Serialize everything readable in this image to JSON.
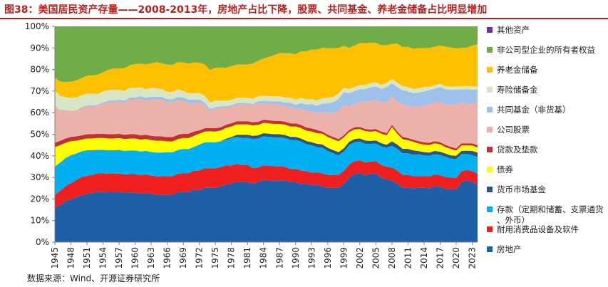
{
  "figure": {
    "title": "图38：美国居民资产存量——2008-2013年，房地产占比下降，股票、共同基金、养老金储备占比明显增加",
    "source": "数据来源：Wind、开源证券研究所"
  },
  "colors": {
    "title": "#b4211f",
    "series": [
      "#1f5fa8",
      "#f01f1f",
      "#00b0f0",
      "#2c5288",
      "#ffff00",
      "#c03232",
      "#ecb1a9",
      "#9fc0e8",
      "#d9e6c6",
      "#ffc000",
      "#70ad47",
      "#7030a0"
    ]
  },
  "chart_data": {
    "type": "area",
    "stacked": true,
    "percent": true,
    "x": [
      1945,
      1946,
      1947,
      1948,
      1949,
      1950,
      1951,
      1952,
      1953,
      1954,
      1955,
      1956,
      1957,
      1958,
      1959,
      1960,
      1961,
      1962,
      1963,
      1964,
      1965,
      1966,
      1967,
      1968,
      1969,
      1970,
      1971,
      1972,
      1973,
      1974,
      1975,
      1976,
      1977,
      1978,
      1979,
      1980,
      1981,
      1982,
      1983,
      1984,
      1985,
      1986,
      1987,
      1988,
      1989,
      1990,
      1991,
      1992,
      1993,
      1994,
      1995,
      1996,
      1997,
      1998,
      1999,
      2000,
      2001,
      2002,
      2003,
      2004,
      2005,
      2006,
      2007,
      2008,
      2009,
      2010,
      2011,
      2012,
      2013,
      2014,
      2015,
      2016,
      2017,
      2018,
      2019,
      2020,
      2021,
      2022,
      2023,
      2024
    ],
    "x_tick_labels": [
      "1945",
      "1948",
      "1951",
      "1954",
      "1957",
      "1960",
      "1963",
      "1966",
      "1969",
      "1972",
      "1975",
      "1978",
      "1981",
      "1984",
      "1987",
      "1990",
      "1993",
      "1996",
      "1999",
      "2002",
      "2005",
      "2008",
      "2011",
      "2014",
      "2017",
      "2020",
      "2023"
    ],
    "ylim": [
      0,
      100
    ],
    "y_ticks": [
      "0%",
      "10%",
      "20%",
      "30%",
      "40%",
      "50%",
      "60%",
      "70%",
      "80%",
      "90%",
      "100%"
    ],
    "xlabel": "",
    "ylabel": "",
    "grid": false,
    "legend_position": "right",
    "series": [
      {
        "name": "房地产",
        "values": [
          16,
          17,
          19,
          20,
          21,
          22,
          22.5,
          23,
          23.5,
          23.5,
          23.5,
          23.5,
          23.5,
          23,
          23,
          23,
          22.5,
          23,
          22.5,
          22,
          22,
          22,
          22,
          23,
          23,
          23,
          24,
          24,
          25,
          25,
          25,
          26,
          27,
          28,
          29,
          29,
          29,
          28,
          29,
          30,
          30,
          30,
          30,
          30,
          29,
          29,
          28,
          28,
          27,
          27,
          26,
          25,
          25,
          25,
          27,
          30,
          32,
          33,
          32,
          33,
          33,
          31,
          30,
          28,
          27,
          25,
          25,
          25,
          25,
          25,
          25,
          26,
          26,
          25,
          25,
          25,
          28,
          29,
          28,
          27.5
        ]
      },
      {
        "name": "耐用消费品设备及软件",
        "values": [
          6,
          6.5,
          7,
          7.5,
          8,
          8.5,
          8.5,
          8.5,
          8.5,
          8.5,
          8.5,
          8.5,
          8.5,
          8.5,
          8.5,
          8.5,
          8.5,
          8.5,
          8.5,
          8.5,
          8.5,
          8.5,
          8.5,
          8.5,
          8.5,
          8.5,
          8.5,
          9,
          9,
          9,
          9,
          9,
          9,
          8.5,
          8.5,
          8,
          8,
          7.5,
          7,
          7,
          7,
          7,
          7,
          6.5,
          6.5,
          6.5,
          6.5,
          6,
          6,
          6,
          6,
          6,
          6,
          6,
          6,
          6,
          6,
          6,
          6,
          6,
          6,
          6,
          6,
          6,
          6,
          6,
          6,
          5.5,
          5.5,
          5.5,
          5.5,
          5.5,
          5.5,
          5.5,
          5.5,
          5.5,
          5,
          5,
          5,
          5
        ]
      },
      {
        "name": "存款（定期和储蓄、支票通货、外币）",
        "values": [
          13,
          13,
          13,
          13,
          12.5,
          12,
          12,
          11.5,
          11,
          11,
          11,
          11,
          11,
          11,
          11,
          11,
          11,
          11,
          11,
          11,
          11,
          11,
          11,
          11,
          11,
          11,
          11,
          12,
          12,
          12,
          12,
          12,
          12,
          13,
          13,
          13,
          13,
          14,
          14,
          14,
          14,
          14,
          14,
          14,
          14,
          14,
          14,
          13,
          13,
          12,
          12,
          11,
          10,
          9,
          9,
          9,
          9,
          9,
          9,
          8.5,
          8.5,
          9,
          9,
          10,
          10,
          10,
          10,
          10,
          10,
          9.5,
          9.5,
          9.5,
          9.5,
          9.5,
          9,
          9,
          8,
          7.5,
          7.5,
          8
        ]
      },
      {
        "name": "货币市场基金",
        "values": [
          0,
          0,
          0,
          0,
          0,
          0,
          0,
          0,
          0,
          0,
          0,
          0,
          0,
          0,
          0,
          0,
          0,
          0,
          0,
          0,
          0,
          0,
          0,
          0,
          0,
          0,
          0,
          0,
          0,
          0,
          0,
          0,
          0.5,
          0.5,
          1,
          1.5,
          1.5,
          1.5,
          1.5,
          1.5,
          1.5,
          1.5,
          1.5,
          1.5,
          1.5,
          1.5,
          1.5,
          1.5,
          1.5,
          1.5,
          1.5,
          1.5,
          1.5,
          1.5,
          1.5,
          1.5,
          1.5,
          1.5,
          1.5,
          1.5,
          1.5,
          1.5,
          1.5,
          2,
          2,
          2,
          2,
          2,
          1.5,
          1.5,
          1.5,
          1.5,
          1.5,
          1.5,
          1.5,
          1.5,
          1.5,
          1.5,
          2,
          2
        ]
      },
      {
        "name": "债券",
        "values": [
          9,
          8,
          7,
          6.5,
          6,
          5.5,
          5.5,
          5.5,
          5.5,
          5.5,
          5.5,
          5.5,
          5.5,
          5.5,
          5.5,
          5.5,
          5.5,
          5.5,
          5.5,
          5.5,
          5.5,
          5,
          5,
          5,
          5,
          5,
          5,
          5,
          5,
          5,
          5,
          5,
          5,
          5,
          5,
          5,
          5,
          5,
          5,
          5,
          5,
          5,
          5,
          5,
          5,
          5,
          5,
          5,
          5,
          5,
          5,
          5,
          5,
          5,
          5,
          4.5,
          4.5,
          4.5,
          4.5,
          4.5,
          4.5,
          4.5,
          4.5,
          6.5,
          5,
          4.5,
          4,
          4,
          3.5,
          3.5,
          3.5,
          3.5,
          3.5,
          3,
          3,
          2.5,
          2.5,
          2.5,
          2.5,
          2.5
        ]
      },
      {
        "name": "贷款及垫款",
        "values": [
          2,
          2,
          2,
          2,
          2,
          2,
          2,
          2,
          2,
          2,
          2,
          2,
          2,
          2,
          2,
          2,
          2,
          2,
          2,
          2,
          2,
          2,
          2,
          2,
          2,
          2,
          2,
          1.5,
          1.5,
          1.5,
          1.5,
          1.5,
          1.5,
          1.5,
          1.5,
          1.5,
          1.5,
          1.5,
          1.5,
          1.5,
          1.5,
          1.5,
          1.5,
          1.5,
          1.5,
          1.5,
          1.5,
          1.5,
          1.5,
          1.5,
          1,
          1,
          1,
          1,
          1,
          1,
          1,
          1,
          1,
          1,
          1,
          1,
          1,
          1,
          1,
          1,
          1,
          1,
          1,
          1,
          1,
          1,
          1,
          1,
          1,
          1,
          1,
          1,
          1,
          1
        ]
      },
      {
        "name": "公司股票",
        "values": [
          17,
          14,
          13,
          12,
          12,
          13,
          13,
          13,
          13,
          14,
          15,
          15,
          15,
          15,
          16,
          16,
          17,
          16,
          17,
          17,
          17,
          16,
          16,
          16,
          15,
          14,
          13,
          13,
          11,
          8,
          9,
          9,
          8,
          8,
          8,
          8,
          8,
          8,
          9,
          8,
          8,
          8,
          8,
          7.5,
          8,
          7,
          8,
          8,
          8,
          8,
          9,
          10,
          11,
          13,
          14,
          11,
          11,
          12,
          13,
          14,
          14,
          14,
          15,
          13,
          14,
          15,
          15,
          15,
          16,
          17,
          18,
          18,
          19,
          19,
          20,
          21,
          19,
          18.5,
          18.5,
          20.5
        ]
      },
      {
        "name": "共同基金（非货基）",
        "values": [
          0.2,
          0.2,
          0.2,
          0.2,
          0.2,
          0.3,
          0.4,
          0.5,
          0.5,
          0.6,
          0.7,
          0.8,
          0.9,
          1,
          1,
          1,
          1.2,
          1.2,
          1.3,
          1.3,
          1.4,
          1.4,
          1.4,
          1.5,
          1.5,
          1.5,
          1.5,
          1.2,
          1,
          0.8,
          0.8,
          0.8,
          0.7,
          0.7,
          0.7,
          0.7,
          0.7,
          0.7,
          0.9,
          1,
          1.2,
          1.5,
          1.5,
          1.7,
          2,
          2,
          2.5,
          3,
          3.5,
          3.5,
          4,
          4.5,
          5,
          5.5,
          6,
          6,
          6,
          6,
          6,
          6.5,
          6.5,
          6.5,
          7,
          6,
          6.5,
          6.5,
          6.5,
          6.5,
          6.5,
          6.5,
          6.5,
          6.5,
          7,
          7,
          7,
          7,
          6,
          7,
          6.5,
          6
        ]
      },
      {
        "name": "寿险储备金",
        "values": [
          7,
          6.5,
          6,
          6,
          6,
          5.5,
          5.5,
          5.5,
          5,
          5,
          5,
          5,
          4.5,
          4.5,
          4.5,
          4.5,
          4,
          4,
          4,
          4,
          3.5,
          3.5,
          3.5,
          3.5,
          3,
          3,
          3,
          3,
          3,
          3,
          3,
          2.5,
          2.5,
          2.5,
          2.5,
          2.5,
          2.5,
          2.5,
          2.5,
          2.5,
          2.5,
          2.5,
          2.5,
          2.5,
          2.5,
          2.5,
          2.5,
          2.5,
          2.5,
          2.5,
          2.5,
          2.5,
          2.5,
          2.5,
          2,
          2,
          2,
          2,
          2,
          2,
          2,
          2,
          2,
          2,
          2,
          2,
          2,
          2,
          2,
          2,
          1.5,
          1.5,
          1.5,
          1.5,
          1.5,
          1.5,
          1.5,
          1.5,
          1.5,
          1.5
        ]
      },
      {
        "name": "养老金储备",
        "values": [
          6,
          6.5,
          7,
          7.5,
          8,
          8,
          8.5,
          8.5,
          9,
          9,
          9.5,
          10,
          10,
          10.5,
          10.5,
          11,
          11,
          11.5,
          11.5,
          12,
          12,
          12.5,
          12.5,
          12.5,
          13,
          13.5,
          14,
          14,
          14.5,
          15,
          15,
          15.5,
          15.5,
          16,
          16,
          16,
          16,
          17,
          17,
          18,
          19,
          20,
          21,
          21.5,
          21.5,
          22,
          22.5,
          23,
          23.5,
          24,
          23.5,
          23,
          22.5,
          21,
          19.5,
          19,
          19.5,
          20,
          20,
          19.5,
          19,
          19,
          18,
          16,
          18,
          18,
          18.5,
          18.5,
          18.5,
          18,
          18,
          18,
          18,
          18.5,
          18.5,
          18,
          18,
          18,
          19,
          20
        ]
      },
      {
        "name": "非公司型企业的所有者权益",
        "values": [
          23.8,
          25.3,
          25.8,
          25.8,
          25.3,
          24.2,
          23.1,
          23,
          22.5,
          21.4,
          20.3,
          19.7,
          19.7,
          19.5,
          18,
          17.5,
          17.3,
          17.8,
          17.2,
          16.7,
          17.1,
          17.7,
          17.7,
          16.5,
          16.5,
          17,
          16.5,
          16.8,
          17.5,
          20,
          19.2,
          19.2,
          19.4,
          18.9,
          18.3,
          18.3,
          18.3,
          17.8,
          16.6,
          15.5,
          14.8,
          14,
          13,
          13,
          13,
          13.5,
          12,
          12,
          11,
          11,
          10,
          10,
          10,
          10,
          9,
          10,
          9,
          8,
          8,
          8,
          8,
          9,
          9,
          8,
          8,
          9.5,
          9.5,
          10.5,
          10,
          10,
          10,
          9.5,
          9,
          9.5,
          10,
          10.5,
          10,
          10,
          9,
          8.5
        ]
      },
      {
        "name": "其他资产",
        "values": [
          0,
          0,
          0,
          0,
          0,
          0,
          0,
          0,
          0,
          0,
          0,
          0,
          0,
          0,
          0,
          0,
          0,
          0,
          0,
          0,
          0,
          0,
          0,
          0,
          0,
          0,
          0,
          0,
          0,
          0,
          0,
          0,
          0,
          0,
          0,
          0,
          0,
          0,
          0,
          0,
          0,
          0,
          0,
          0,
          0,
          0,
          0,
          0,
          0,
          0,
          0,
          0,
          0,
          0,
          0,
          0,
          0,
          0,
          0,
          0,
          0,
          0,
          0,
          0,
          0,
          0,
          0,
          0,
          0,
          0,
          0,
          0,
          0,
          0,
          0,
          0,
          0,
          0,
          0,
          0
        ]
      }
    ]
  }
}
